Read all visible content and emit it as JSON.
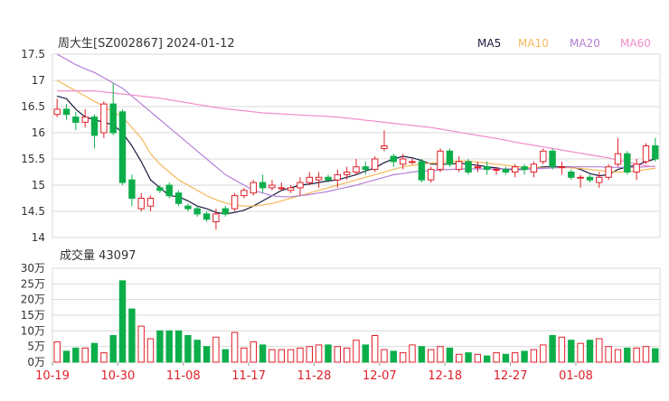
{
  "header": {
    "title": "周大生[SZ002867] 2024-01-12",
    "legend": [
      {
        "label": "MA5",
        "color": "#1a1a40"
      },
      {
        "label": "MA10",
        "color": "#f5b85a"
      },
      {
        "label": "MA20",
        "color": "#b57fd6"
      },
      {
        "label": "MA60",
        "color": "#f08cc8"
      }
    ]
  },
  "volume_title": "成交量 43097",
  "colors": {
    "up": "#e0202a",
    "down": "#0cae4a",
    "grid": "#d9d9d9"
  },
  "chart_data": [
    {
      "type": "candlestick",
      "ylim": [
        14,
        17.5
      ],
      "yticks": [
        "17.5",
        "17",
        "16.5",
        "16",
        "15.5",
        "15",
        "14.5",
        "14"
      ],
      "candles": [
        [
          16.35,
          16.45,
          16.65,
          16.3
        ],
        [
          16.45,
          16.35,
          16.55,
          16.25
        ],
        [
          16.3,
          16.2,
          16.4,
          16.05
        ],
        [
          16.2,
          16.3,
          16.45,
          16.1
        ],
        [
          16.3,
          15.95,
          16.35,
          15.7
        ],
        [
          16.0,
          16.55,
          16.6,
          15.9
        ],
        [
          16.55,
          16.0,
          16.95,
          15.95
        ],
        [
          16.4,
          15.05,
          16.45,
          15.0
        ],
        [
          15.1,
          14.75,
          15.2,
          14.6
        ],
        [
          14.55,
          14.75,
          14.85,
          14.5
        ],
        [
          14.6,
          14.75,
          14.8,
          14.5
        ],
        [
          14.95,
          14.9,
          15.0,
          14.85
        ],
        [
          15.0,
          14.8,
          15.05,
          14.75
        ],
        [
          14.85,
          14.65,
          14.9,
          14.6
        ],
        [
          14.6,
          14.55,
          14.65,
          14.5
        ],
        [
          14.55,
          14.45,
          14.6,
          14.4
        ],
        [
          14.45,
          14.35,
          14.5,
          14.3
        ],
        [
          14.3,
          14.45,
          14.55,
          14.15
        ],
        [
          14.55,
          14.45,
          14.6,
          14.4
        ],
        [
          14.55,
          14.8,
          14.85,
          14.5
        ],
        [
          14.8,
          14.9,
          14.95,
          14.75
        ],
        [
          14.85,
          15.05,
          15.1,
          14.8
        ],
        [
          15.05,
          14.95,
          15.2,
          14.85
        ],
        [
          14.95,
          15.0,
          15.1,
          14.9
        ],
        [
          14.95,
          14.95,
          15.05,
          14.9
        ],
        [
          14.9,
          14.95,
          15.0,
          14.85
        ],
        [
          14.95,
          15.05,
          15.15,
          14.8
        ],
        [
          15.05,
          15.15,
          15.25,
          15.0
        ],
        [
          15.1,
          15.15,
          15.25,
          14.95
        ],
        [
          15.15,
          15.1,
          15.2,
          15.05
        ],
        [
          15.1,
          15.2,
          15.3,
          14.95
        ],
        [
          15.2,
          15.25,
          15.35,
          15.1
        ],
        [
          15.25,
          15.35,
          15.5,
          15.2
        ],
        [
          15.35,
          15.3,
          15.45,
          15.2
        ],
        [
          15.3,
          15.5,
          15.55,
          15.25
        ],
        [
          15.7,
          15.75,
          16.05,
          15.65
        ],
        [
          15.55,
          15.45,
          15.6,
          15.35
        ],
        [
          15.4,
          15.5,
          15.6,
          15.3
        ],
        [
          15.45,
          15.45,
          15.5,
          15.4
        ],
        [
          15.45,
          15.1,
          15.5,
          15.05
        ],
        [
          15.1,
          15.3,
          15.35,
          15.05
        ],
        [
          15.3,
          15.65,
          15.7,
          15.25
        ],
        [
          15.65,
          15.4,
          15.7,
          15.35
        ],
        [
          15.3,
          15.45,
          15.55,
          15.25
        ],
        [
          15.45,
          15.25,
          15.5,
          15.2
        ],
        [
          15.35,
          15.35,
          15.45,
          15.25
        ],
        [
          15.35,
          15.3,
          15.45,
          15.2
        ],
        [
          15.3,
          15.3,
          15.35,
          15.2
        ],
        [
          15.3,
          15.25,
          15.35,
          15.2
        ],
        [
          15.25,
          15.35,
          15.4,
          15.15
        ],
        [
          15.35,
          15.3,
          15.4,
          15.2
        ],
        [
          15.25,
          15.4,
          15.45,
          15.15
        ],
        [
          15.45,
          15.65,
          15.7,
          15.4
        ],
        [
          15.65,
          15.35,
          15.7,
          15.3
        ],
        [
          15.35,
          15.35,
          15.45,
          15.2
        ],
        [
          15.25,
          15.15,
          15.3,
          15.1
        ],
        [
          15.15,
          15.15,
          15.2,
          14.95
        ],
        [
          15.15,
          15.1,
          15.2,
          15.05
        ],
        [
          15.05,
          15.15,
          15.25,
          14.95
        ],
        [
          15.15,
          15.35,
          15.4,
          15.1
        ],
        [
          15.4,
          15.6,
          15.9,
          15.35
        ],
        [
          15.6,
          15.25,
          15.65,
          15.2
        ],
        [
          15.25,
          15.4,
          15.5,
          15.1
        ],
        [
          15.45,
          15.75,
          15.8,
          15.4
        ],
        [
          15.75,
          15.5,
          15.9,
          15.45
        ]
      ],
      "ma": {
        "MA5": [
          16.7,
          16.65,
          16.45,
          16.3,
          16.25,
          16.2,
          16.15,
          16.0,
          15.75,
          15.45,
          15.1,
          14.95,
          14.8,
          14.78,
          14.7,
          14.6,
          14.55,
          14.48,
          14.45,
          14.48,
          14.52,
          14.6,
          14.7,
          14.8,
          14.9,
          14.95,
          15.0,
          15.02,
          15.05,
          15.08,
          15.1,
          15.15,
          15.2,
          15.27,
          15.33,
          15.43,
          15.5,
          15.55,
          15.52,
          15.47,
          15.4,
          15.4,
          15.4,
          15.42,
          15.4,
          15.38,
          15.35,
          15.33,
          15.3,
          15.3,
          15.3,
          15.32,
          15.35,
          15.35,
          15.35,
          15.35,
          15.3,
          15.22,
          15.18,
          15.2,
          15.3,
          15.35,
          15.38,
          15.45,
          15.5
        ],
        "MA10": [
          17.0,
          16.9,
          16.8,
          16.7,
          16.6,
          16.5,
          16.4,
          16.3,
          16.1,
          15.9,
          15.6,
          15.4,
          15.25,
          15.1,
          15.0,
          14.9,
          14.8,
          14.72,
          14.66,
          14.62,
          14.6,
          14.6,
          14.62,
          14.65,
          14.7,
          14.75,
          14.8,
          14.85,
          14.9,
          14.95,
          15.0,
          15.05,
          15.1,
          15.15,
          15.2,
          15.25,
          15.3,
          15.35,
          15.38,
          15.4,
          15.42,
          15.44,
          15.45,
          15.46,
          15.46,
          15.44,
          15.42,
          15.4,
          15.38,
          15.36,
          15.34,
          15.33,
          15.33,
          15.33,
          15.34,
          15.33,
          15.32,
          15.3,
          15.28,
          15.26,
          15.25,
          15.26,
          15.27,
          15.3,
          15.32
        ],
        "MA20": [
          17.5,
          17.4,
          17.3,
          17.22,
          17.15,
          17.05,
          16.95,
          16.85,
          16.7,
          16.55,
          16.4,
          16.25,
          16.1,
          15.95,
          15.8,
          15.65,
          15.5,
          15.35,
          15.2,
          15.1,
          15.0,
          14.9,
          14.85,
          14.8,
          14.78,
          14.78,
          14.8,
          14.82,
          14.85,
          14.88,
          14.92,
          14.96,
          15.0,
          15.05,
          15.1,
          15.15,
          15.2,
          15.22,
          15.25,
          15.27,
          15.28,
          15.29,
          15.3,
          15.31,
          15.31,
          15.31,
          15.31,
          15.31,
          15.31,
          15.31,
          15.31,
          15.31,
          15.32,
          15.33,
          15.34,
          15.35,
          15.35,
          15.35,
          15.35,
          15.34,
          15.34,
          15.34,
          15.34,
          15.35,
          15.36
        ],
        "MA60": [
          16.8,
          16.8,
          16.8,
          16.8,
          16.8,
          16.78,
          16.76,
          16.74,
          16.72,
          16.7,
          16.68,
          16.66,
          16.63,
          16.6,
          16.57,
          16.54,
          16.51,
          16.48,
          16.46,
          16.44,
          16.42,
          16.4,
          16.38,
          16.37,
          16.36,
          16.35,
          16.34,
          16.33,
          16.32,
          16.31,
          16.3,
          16.28,
          16.26,
          16.24,
          16.22,
          16.2,
          16.18,
          16.16,
          16.14,
          16.12,
          16.1,
          16.07,
          16.04,
          16.01,
          15.98,
          15.95,
          15.92,
          15.89,
          15.86,
          15.82,
          15.79,
          15.76,
          15.73,
          15.7,
          15.67,
          15.64,
          15.61,
          15.58,
          15.55,
          15.52,
          15.48,
          15.44,
          15.4,
          15.37,
          15.35
        ]
      }
    },
    {
      "type": "bar",
      "title": "成交量 43097",
      "ylim": [
        0,
        30
      ],
      "yticks": [
        "30万",
        "25万",
        "20万",
        "15万",
        "10万",
        "5万",
        "0万"
      ],
      "volumes": [
        6.5,
        3.5,
        4.5,
        4.5,
        6,
        3,
        8.5,
        26,
        17,
        11.5,
        7.5,
        10,
        10,
        10,
        8.5,
        7,
        5,
        8,
        4,
        9.5,
        4.5,
        6.5,
        5.5,
        4,
        4,
        4,
        4.5,
        5,
        5.5,
        5.5,
        5,
        4.5,
        7,
        5.5,
        8.5,
        4,
        3.5,
        3,
        5.5,
        5,
        4,
        5,
        4.5,
        2.5,
        3,
        2.5,
        2,
        3,
        2.5,
        3,
        3.5,
        4,
        5.5,
        8.5,
        8,
        7,
        6,
        7,
        7.5,
        5,
        4,
        4.5,
        4.5,
        5,
        4.3
      ],
      "x_tick_labels": [
        "10-19",
        "10-30",
        "11-08",
        "11-17",
        "11-28",
        "12-07",
        "12-18",
        "12-27",
        "01-08"
      ],
      "x_tick_index": [
        0,
        7,
        14,
        21,
        28,
        35,
        42,
        49,
        56
      ]
    }
  ]
}
